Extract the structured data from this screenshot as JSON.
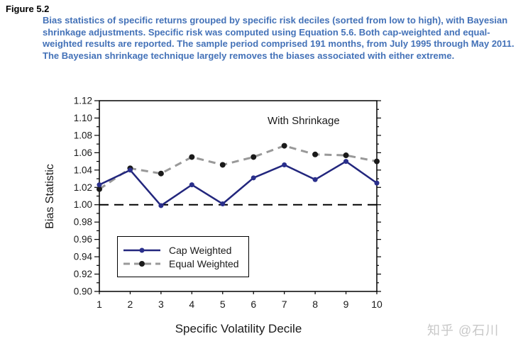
{
  "figure": {
    "label": "Figure 5.2",
    "caption_color": "#4472b8",
    "caption_lines": [
      "Bias statistics of specific returns grouped by specific risk deciles (sorted from low to high), with Bayesian",
      "shrinkage adjustments. Specific risk was computed using Equation 5.6. Both cap-weighted and equal-",
      "weighted results are reported. The sample period comprised 191 months, from July 1995 through May 2011.",
      "The Bayesian shrinkage technique largely removes the biases associated with either extreme."
    ]
  },
  "chart_data": {
    "type": "line",
    "annotation": "With Shrinkage",
    "xlabel": "Specific Volatility Decile",
    "ylabel": "Bias Statistic",
    "categories": [
      "1",
      "2",
      "3",
      "4",
      "5",
      "6",
      "7",
      "8",
      "9",
      "10"
    ],
    "series": [
      {
        "name": "Cap Weighted",
        "style": "solid",
        "color": "#22267d",
        "marker": "circle",
        "marker_color": "#2a2f8c",
        "values": [
          1.023,
          1.04,
          0.999,
          1.023,
          1.001,
          1.031,
          1.046,
          1.029,
          1.05,
          1.025
        ]
      },
      {
        "name": "Equal Weighted",
        "style": "dashed",
        "color": "#999999",
        "marker": "circle",
        "marker_color": "#1a1a1a",
        "values": [
          1.018,
          1.042,
          1.036,
          1.055,
          1.046,
          1.055,
          1.068,
          1.058,
          1.057,
          1.05
        ]
      }
    ],
    "ylim": [
      0.9,
      1.12
    ],
    "ytick_major_step": 0.02,
    "ytick_minor_step": 0.01,
    "reference_line": {
      "y": 1.0,
      "style": "dashed",
      "color": "#000000"
    },
    "legend_position": "lower-left",
    "grid": false,
    "axis_color": "#000000",
    "tick_label_color": "#1a1a1a"
  },
  "watermark": {
    "text": "知乎 @石川",
    "color": "#c8c8c8"
  }
}
